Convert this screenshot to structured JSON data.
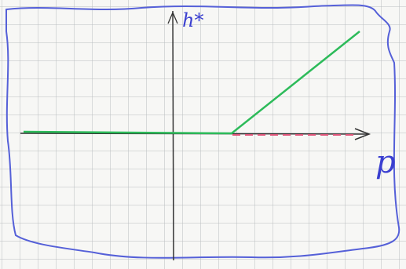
{
  "labels": {
    "y_axis": "h*",
    "x_axis": "p"
  }
}
